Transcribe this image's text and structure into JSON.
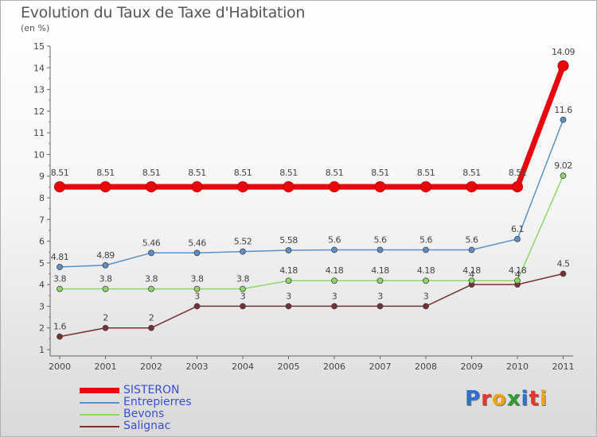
{
  "chart_data": {
    "type": "line",
    "title": "Evolution du Taux de Taxe d'Habitation",
    "subtitle": "(en %)",
    "categories": [
      "2000",
      "2001",
      "2002",
      "2003",
      "2004",
      "2005",
      "2006",
      "2007",
      "2008",
      "2009",
      "2010",
      "2011"
    ],
    "yticks": [
      "1",
      "2",
      "3",
      "4",
      "5",
      "6",
      "7",
      "8",
      "9",
      "10",
      "11",
      "12",
      "13",
      "14",
      "15"
    ],
    "ylim": [
      1,
      15
    ],
    "series": [
      {
        "name": "SISTERON",
        "color": "#e8070c",
        "values": [
          8.51,
          8.51,
          8.51,
          8.51,
          8.51,
          8.51,
          8.51,
          8.51,
          8.51,
          8.51,
          8.51,
          14.09
        ],
        "labels": [
          "8.51",
          "8.51",
          "8.51",
          "8.51",
          "8.51",
          "8.51",
          "8.51",
          "8.51",
          "8.51",
          "8.51",
          "8.51",
          "14.09"
        ]
      },
      {
        "name": "Entrepierres",
        "color": "#5b8fc8",
        "values": [
          4.81,
          4.89,
          5.46,
          5.46,
          5.52,
          5.58,
          5.6,
          5.6,
          5.6,
          5.6,
          6.1,
          11.6
        ],
        "labels": [
          "4.81",
          "4.89",
          "5.46",
          "5.46",
          "5.52",
          "5.58",
          "5.6",
          "5.6",
          "5.6",
          "5.6",
          "6.1",
          "11.6"
        ]
      },
      {
        "name": "Bevons",
        "color": "#8fd66a",
        "values": [
          3.8,
          3.8,
          3.8,
          3.8,
          3.8,
          4.18,
          4.18,
          4.18,
          4.18,
          4.18,
          4.18,
          9.02
        ],
        "labels": [
          "3.8",
          "3.8",
          "3.8",
          "3.8",
          "3.8",
          "4.18",
          "4.18",
          "4.18",
          "4.18",
          "4.18",
          "4.18",
          "9.02"
        ]
      },
      {
        "name": "Salignac",
        "color": "#7a3030",
        "values": [
          1.6,
          2,
          2,
          3,
          3,
          3,
          3,
          3,
          3,
          4,
          4,
          4.5
        ],
        "labels": [
          "1.6",
          "2",
          "2",
          "3",
          "3",
          "3",
          "3",
          "3",
          "3",
          "4",
          "4",
          "4.5"
        ]
      }
    ]
  },
  "logo": {
    "text": "Proxiti",
    "letters": [
      {
        "char": "P",
        "color": "#2f6fd0"
      },
      {
        "char": "r",
        "color": "#e0382f"
      },
      {
        "char": "o",
        "color": "#f2a31a"
      },
      {
        "char": "x",
        "color": "#2f9b35"
      },
      {
        "char": "i",
        "color": "#2f6fd0"
      },
      {
        "char": "t",
        "color": "#e0382f"
      },
      {
        "char": "i",
        "color": "#f2a31a"
      }
    ]
  }
}
